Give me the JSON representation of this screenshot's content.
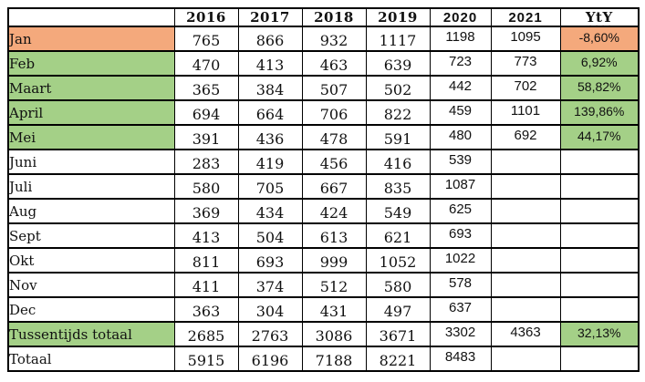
{
  "colors": {
    "highlight_orange": "#F4A97C",
    "highlight_green": "#A4D087",
    "border": "#000000",
    "spellcheck_squiggle": "#E02920"
  },
  "table": {
    "columns": [
      {
        "label": "",
        "style": "serif",
        "misspelled": false
      },
      {
        "label": "2016",
        "style": "serif",
        "misspelled": false
      },
      {
        "label": "2017",
        "style": "serif",
        "misspelled": false
      },
      {
        "label": "2018",
        "style": "serif",
        "misspelled": false
      },
      {
        "label": "2019",
        "style": "serif",
        "misspelled": false
      },
      {
        "label": "2020",
        "style": "sans",
        "misspelled": false
      },
      {
        "label": "2021",
        "style": "sans",
        "misspelled": false
      },
      {
        "label": "YtY",
        "style": "serif",
        "misspelled": true
      }
    ],
    "rows": [
      {
        "label": "Jan",
        "label_fill": "orange",
        "yty_fill": "orange",
        "values": [
          "765",
          "866",
          "932",
          "1117",
          "1198",
          "1095",
          "-8,60%"
        ]
      },
      {
        "label": "Feb",
        "label_fill": "green",
        "yty_fill": "green",
        "values": [
          "470",
          "413",
          "463",
          "639",
          "723",
          "773",
          "6,92%"
        ]
      },
      {
        "label": "Maart",
        "label_fill": "green",
        "yty_fill": "green",
        "values": [
          "365",
          "384",
          "507",
          "502",
          "442",
          "702",
          "58,82%"
        ]
      },
      {
        "label": "April",
        "label_fill": "green",
        "yty_fill": "green",
        "values": [
          "694",
          "664",
          "706",
          "822",
          "459",
          "1101",
          "139,86%"
        ]
      },
      {
        "label": "Mei",
        "label_fill": "green",
        "yty_fill": "green",
        "values": [
          "391",
          "436",
          "478",
          "591",
          "480",
          "692",
          "44,17%"
        ]
      },
      {
        "label": "Juni",
        "label_fill": "none",
        "yty_fill": "none",
        "values": [
          "283",
          "419",
          "456",
          "416",
          "539",
          "",
          ""
        ]
      },
      {
        "label": "Juli",
        "label_fill": "none",
        "yty_fill": "none",
        "values": [
          "580",
          "705",
          "667",
          "835",
          "1087",
          "",
          ""
        ]
      },
      {
        "label": "Aug",
        "label_fill": "none",
        "yty_fill": "none",
        "values": [
          "369",
          "434",
          "424",
          "549",
          "625",
          "",
          ""
        ]
      },
      {
        "label": "Sept",
        "label_fill": "none",
        "yty_fill": "none",
        "values": [
          "413",
          "504",
          "613",
          "621",
          "693",
          "",
          ""
        ]
      },
      {
        "label": "Okt",
        "label_fill": "none",
        "yty_fill": "none",
        "values": [
          "811",
          "693",
          "999",
          "1052",
          "1022",
          "",
          ""
        ]
      },
      {
        "label": "Nov",
        "label_fill": "none",
        "yty_fill": "none",
        "values": [
          "411",
          "374",
          "512",
          "580",
          "578",
          "",
          ""
        ]
      },
      {
        "label": "Dec",
        "label_fill": "none",
        "yty_fill": "none",
        "values": [
          "363",
          "304",
          "431",
          "497",
          "637",
          "",
          ""
        ]
      },
      {
        "label": "Tussentijds totaal",
        "label_fill": "green",
        "yty_fill": "green",
        "values": [
          "2685",
          "2763",
          "3086",
          "3671",
          "3302",
          "4363",
          "32,13%"
        ]
      },
      {
        "label": "Totaal",
        "label_fill": "none",
        "yty_fill": "none",
        "values": [
          "5915",
          "6196",
          "7188",
          "8221",
          "8483",
          "",
          ""
        ]
      }
    ]
  },
  "chart_data": {
    "type": "table",
    "title": "",
    "categories": [
      "Jan",
      "Feb",
      "Maart",
      "April",
      "Mei",
      "Juni",
      "Juli",
      "Aug",
      "Sept",
      "Okt",
      "Nov",
      "Dec"
    ],
    "series": [
      {
        "name": "2016",
        "values": [
          765,
          470,
          365,
          694,
          391,
          283,
          580,
          369,
          413,
          811,
          411,
          363
        ],
        "tussentijds_totaal": 2685,
        "totaal": 5915
      },
      {
        "name": "2017",
        "values": [
          866,
          413,
          384,
          664,
          436,
          419,
          705,
          434,
          504,
          693,
          374,
          304
        ],
        "tussentijds_totaal": 2763,
        "totaal": 6196
      },
      {
        "name": "2018",
        "values": [
          932,
          463,
          507,
          706,
          478,
          456,
          667,
          424,
          613,
          999,
          512,
          431
        ],
        "tussentijds_totaal": 3086,
        "totaal": 7188
      },
      {
        "name": "2019",
        "values": [
          1117,
          639,
          502,
          822,
          591,
          416,
          835,
          549,
          621,
          1052,
          580,
          497
        ],
        "tussentijds_totaal": 3671,
        "totaal": 8221
      },
      {
        "name": "2020",
        "values": [
          1198,
          723,
          442,
          459,
          480,
          539,
          1087,
          625,
          693,
          1022,
          578,
          637
        ],
        "tussentijds_totaal": 3302,
        "totaal": 8483
      },
      {
        "name": "2021",
        "values": [
          1095,
          773,
          702,
          1101,
          692,
          null,
          null,
          null,
          null,
          null,
          null,
          null
        ],
        "tussentijds_totaal": 4363,
        "totaal": null
      }
    ],
    "yty_percent": {
      "Jan": "-8,60%",
      "Feb": "6,92%",
      "Maart": "58,82%",
      "April": "139,86%",
      "Mei": "44,17%",
      "Tussentijds totaal": "32,13%"
    },
    "row_highlights": {
      "orange": [
        "Jan"
      ],
      "green": [
        "Feb",
        "Maart",
        "April",
        "Mei",
        "Tussentijds totaal"
      ]
    }
  }
}
